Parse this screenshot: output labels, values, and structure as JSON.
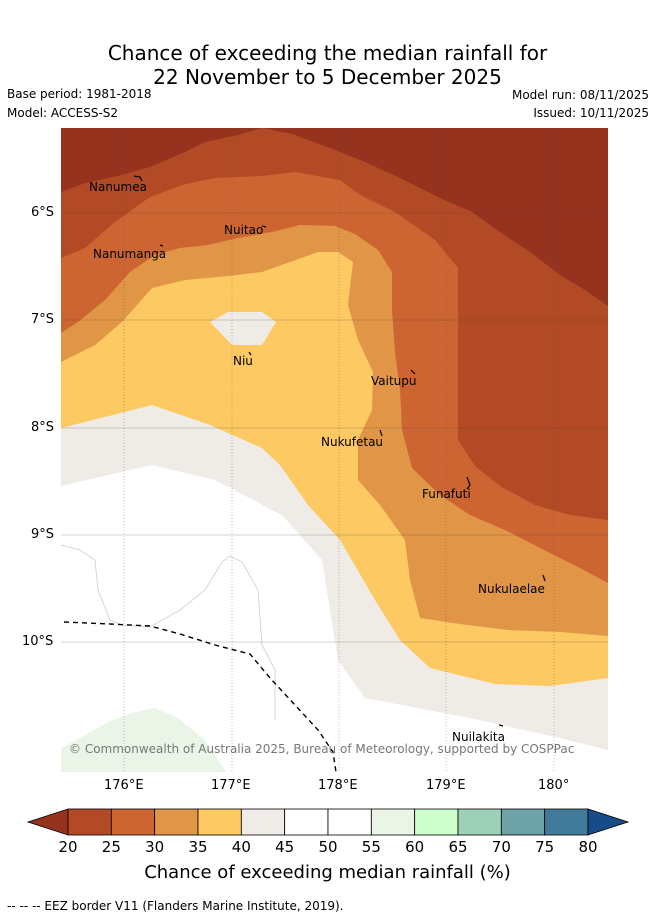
{
  "title_line1": "Chance of exceeding the median rainfall for",
  "title_line2": "22 November to 5 December 2025",
  "base_period": "Base period: 1981-2018",
  "model": "Model: ACCESS-S2",
  "model_run": "Model run: 08/11/2025",
  "issued": "Issued: 10/11/2025",
  "map": {
    "lat_labels": [
      "6°S",
      "7°S",
      "8°S",
      "9°S",
      "10°S"
    ],
    "lon_labels": [
      "176°E",
      "177°E",
      "178°E",
      "179°E",
      "180°"
    ],
    "places": [
      "Nanumea",
      "Nuitao",
      "Nanumanga",
      "Niu",
      "Vaitupu",
      "Nukufetau",
      "Funafuti",
      "Nukulaelae",
      "Nuilakita"
    ],
    "credit": "© Commonwealth of Australia 2025, Bureau of Meteorology, supported by COSPPac"
  },
  "colorbar": {
    "label": "Chance of exceeding median rainfall (%)",
    "ticks": [
      "20",
      "25",
      "30",
      "35",
      "40",
      "45",
      "50",
      "55",
      "60",
      "65",
      "70",
      "75",
      "80"
    ],
    "colors": [
      "#b24a25",
      "#cd6532",
      "#e09646",
      "#fcc962",
      "#efebe6",
      "#ffffff",
      "#ffffff",
      "#eaf5e8",
      "#ccffcc",
      "#9dd0b8",
      "#6da3a6",
      "#417b99"
    ],
    "under_color": "#96331e",
    "over_color": "#164c8a"
  },
  "footer": "--  --  -- EEZ border V11 (Flanders Marine Institute, 2019)."
}
